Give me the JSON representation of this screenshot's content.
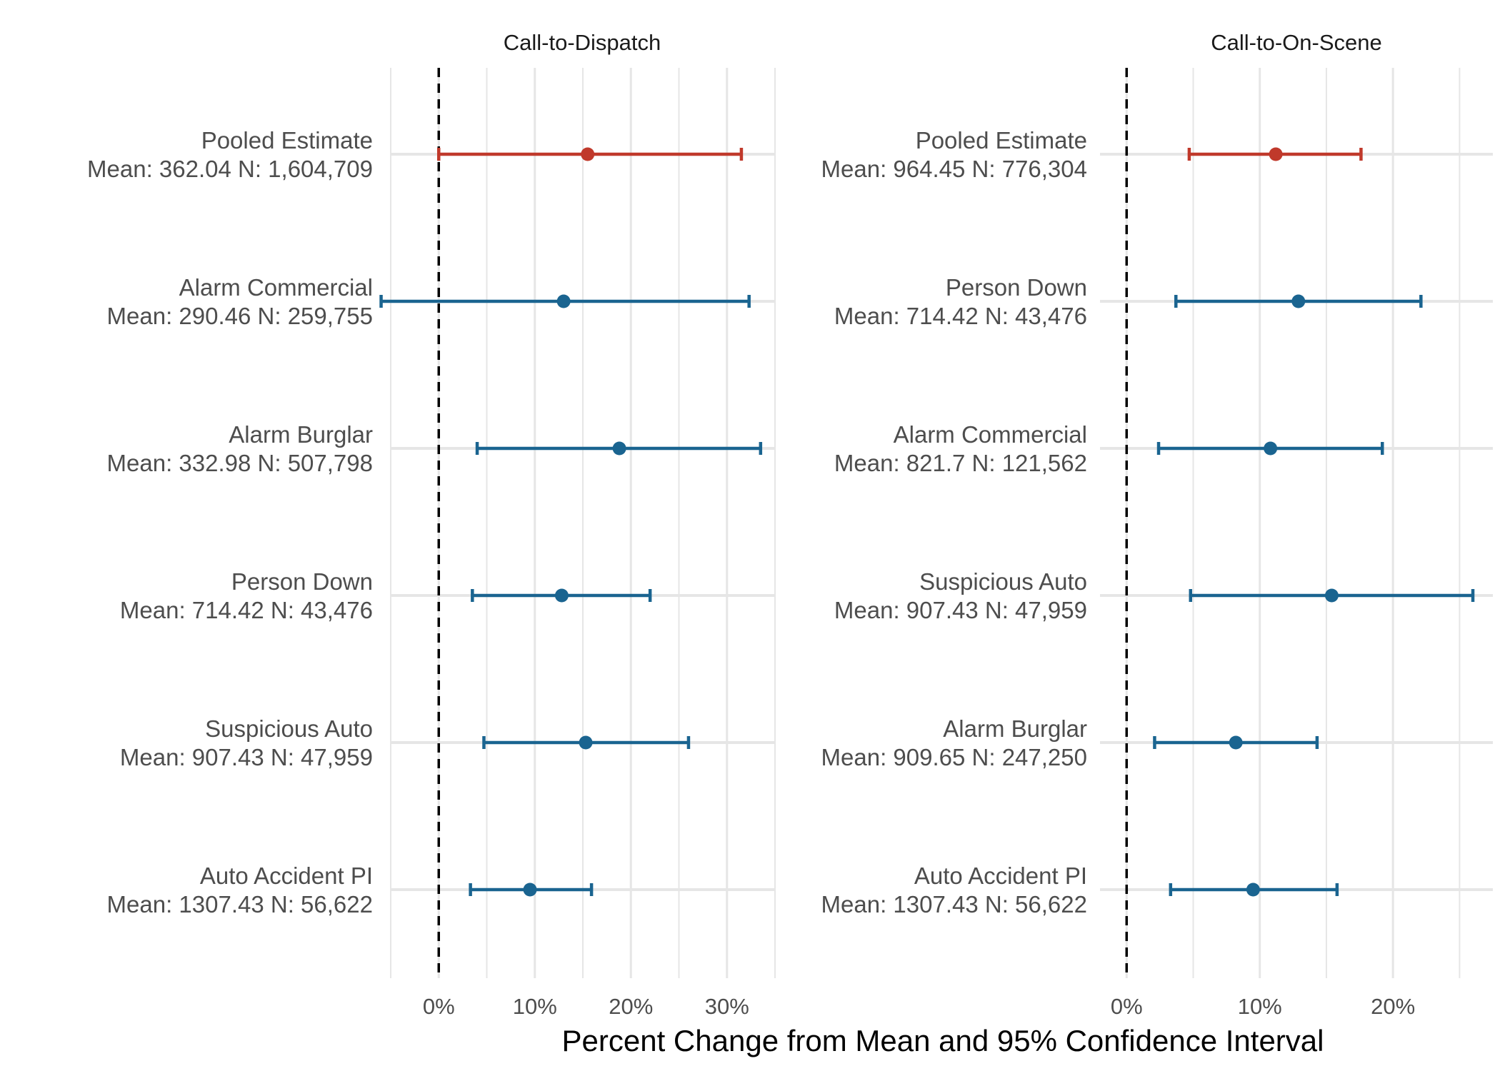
{
  "chart_data": [
    {
      "type": "forest",
      "title": "Call-to-Dispatch",
      "xlim": [
        -5,
        35
      ],
      "x_ticks": [
        0,
        10,
        20,
        30
      ],
      "x_tick_labels": [
        "0%",
        "10%",
        "20%",
        "30%"
      ],
      "reference_line": 0,
      "rows": [
        {
          "label": "Pooled Estimate",
          "stats": "Mean: 362.04 N: 1,604,709",
          "estimate": 15.5,
          "lower": 0.0,
          "upper": 31.5,
          "pooled": true
        },
        {
          "label": "Alarm Commercial",
          "stats": "Mean: 290.46 N: 259,755",
          "estimate": 13.0,
          "lower": -6.0,
          "upper": 32.3,
          "pooled": false
        },
        {
          "label": "Alarm Burglar",
          "stats": "Mean: 332.98 N: 507,798",
          "estimate": 18.8,
          "lower": 4.0,
          "upper": 33.5,
          "pooled": false
        },
        {
          "label": "Person Down",
          "stats": "Mean: 714.42 N: 43,476",
          "estimate": 12.8,
          "lower": 3.5,
          "upper": 22.0,
          "pooled": false
        },
        {
          "label": "Suspicious Auto",
          "stats": "Mean: 907.43 N: 47,959",
          "estimate": 15.3,
          "lower": 4.7,
          "upper": 26.0,
          "pooled": false
        },
        {
          "label": "Auto Accident PI",
          "stats": "Mean: 1307.43 N: 56,622",
          "estimate": 9.5,
          "lower": 3.3,
          "upper": 15.9,
          "pooled": false
        }
      ]
    },
    {
      "type": "forest",
      "title": "Call-to-On-Scene",
      "xlim": [
        -2,
        27.5
      ],
      "x_ticks": [
        0,
        10,
        20
      ],
      "x_tick_labels": [
        "0%",
        "10%",
        "20%"
      ],
      "reference_line": 0,
      "rows": [
        {
          "label": "Pooled Estimate",
          "stats": "Mean: 964.45 N: 776,304",
          "estimate": 11.2,
          "lower": 4.7,
          "upper": 17.6,
          "pooled": true
        },
        {
          "label": "Person Down",
          "stats": "Mean: 714.42 N: 43,476",
          "estimate": 12.9,
          "lower": 3.7,
          "upper": 22.1,
          "pooled": false
        },
        {
          "label": "Alarm Commercial",
          "stats": "Mean: 821.7 N: 121,562",
          "estimate": 10.8,
          "lower": 2.4,
          "upper": 19.2,
          "pooled": false
        },
        {
          "label": "Suspicious Auto",
          "stats": "Mean: 907.43 N: 47,959",
          "estimate": 15.4,
          "lower": 4.8,
          "upper": 26.0,
          "pooled": false
        },
        {
          "label": "Alarm Burglar",
          "stats": "Mean: 909.65 N: 247,250",
          "estimate": 8.2,
          "lower": 2.1,
          "upper": 14.3,
          "pooled": false
        },
        {
          "label": "Auto Accident PI",
          "stats": "Mean: 1307.43 N: 56,622",
          "estimate": 9.5,
          "lower": 3.3,
          "upper": 15.8,
          "pooled": false
        }
      ]
    }
  ],
  "xlabel": "Percent Change from Mean and 95% Confidence Interval",
  "colors": {
    "pooled": "#c0392b",
    "category": "#1a6490",
    "grid": "#e6e6e6",
    "reference": "#000000"
  }
}
